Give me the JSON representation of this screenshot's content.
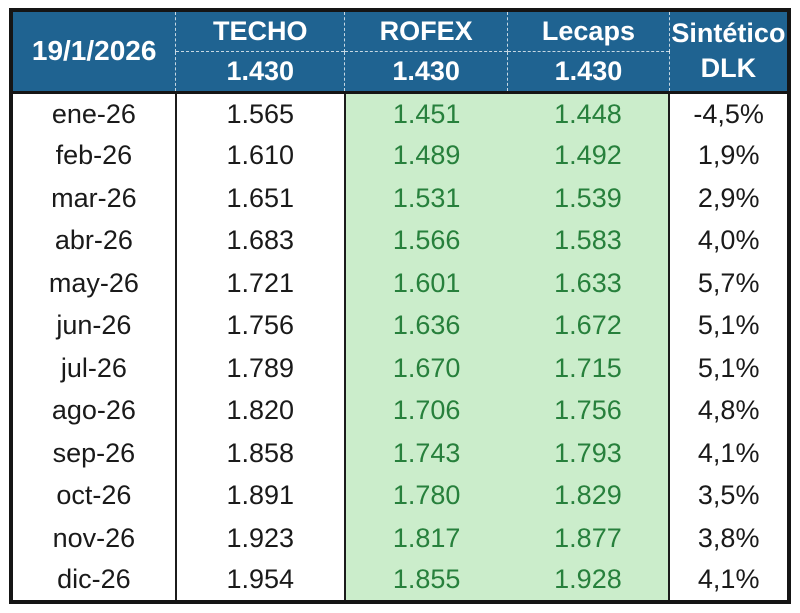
{
  "table": {
    "date": "19/1/2026",
    "columns": [
      {
        "label": "TECHO",
        "value": "1.430"
      },
      {
        "label": "ROFEX",
        "value": "1.430"
      },
      {
        "label": "Lecaps",
        "value": "1.430"
      }
    ],
    "synthetic_header": {
      "line1": "Sintético",
      "line2": "DLK"
    },
    "rows": [
      {
        "month": "ene-26",
        "techo": "1.565",
        "rofex": "1.451",
        "lecaps": "1.448",
        "dlk": "-4,5%"
      },
      {
        "month": "feb-26",
        "techo": "1.610",
        "rofex": "1.489",
        "lecaps": "1.492",
        "dlk": "1,9%"
      },
      {
        "month": "mar-26",
        "techo": "1.651",
        "rofex": "1.531",
        "lecaps": "1.539",
        "dlk": "2,9%"
      },
      {
        "month": "abr-26",
        "techo": "1.683",
        "rofex": "1.566",
        "lecaps": "1.583",
        "dlk": "4,0%"
      },
      {
        "month": "may-26",
        "techo": "1.721",
        "rofex": "1.601",
        "lecaps": "1.633",
        "dlk": "5,7%"
      },
      {
        "month": "jun-26",
        "techo": "1.756",
        "rofex": "1.636",
        "lecaps": "1.672",
        "dlk": "5,1%"
      },
      {
        "month": "jul-26",
        "techo": "1.789",
        "rofex": "1.670",
        "lecaps": "1.715",
        "dlk": "5,1%"
      },
      {
        "month": "ago-26",
        "techo": "1.820",
        "rofex": "1.706",
        "lecaps": "1.756",
        "dlk": "4,8%"
      },
      {
        "month": "sep-26",
        "techo": "1.858",
        "rofex": "1.743",
        "lecaps": "1.793",
        "dlk": "4,1%"
      },
      {
        "month": "oct-26",
        "techo": "1.891",
        "rofex": "1.780",
        "lecaps": "1.829",
        "dlk": "3,5%"
      },
      {
        "month": "nov-26",
        "techo": "1.923",
        "rofex": "1.817",
        "lecaps": "1.877",
        "dlk": "3,8%"
      },
      {
        "month": "dic-26",
        "techo": "1.954",
        "rofex": "1.855",
        "lecaps": "1.928",
        "dlk": "4,1%"
      }
    ],
    "colors": {
      "header_bg": "#1F6391",
      "header_text": "#FFFFFF",
      "highlight_bg": "#CBEDCB",
      "highlight_text": "#27803C",
      "text": "#1A1A1A",
      "border": "#151515"
    }
  }
}
